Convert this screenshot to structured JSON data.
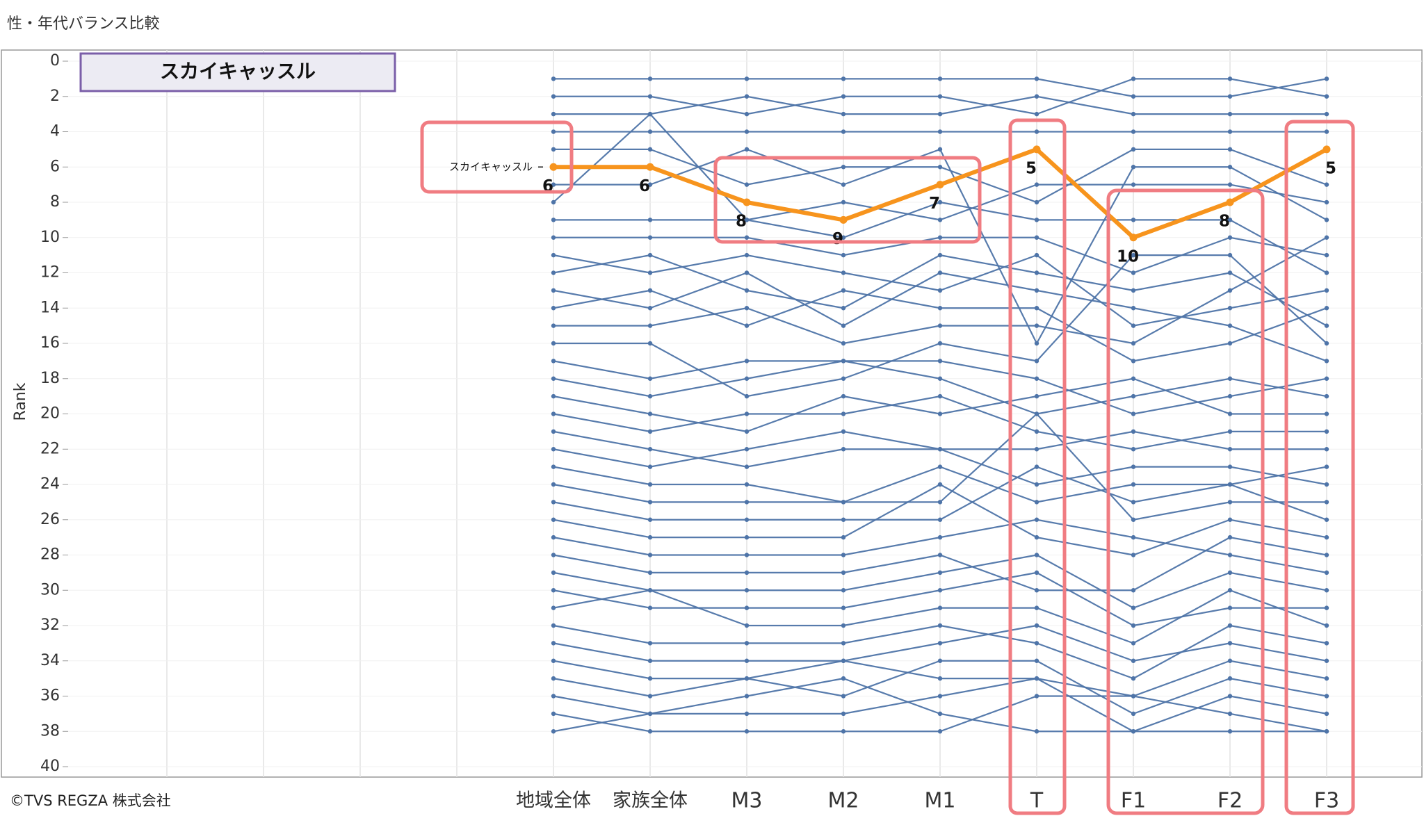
{
  "title": "性・年代バランス比較",
  "footer": "©TVS REGZA 株式会社",
  "chart_data": {
    "type": "line",
    "y_label": "Rank",
    "ylim": [
      0,
      40
    ],
    "y_reversed": true,
    "yticks": [
      0,
      2,
      4,
      6,
      8,
      10,
      12,
      14,
      16,
      18,
      20,
      22,
      24,
      26,
      28,
      30,
      32,
      34,
      36,
      38,
      40
    ],
    "grid": true,
    "categories": [
      "地域全体",
      "家族全体",
      "M3",
      "M2",
      "M1",
      "T",
      "F1",
      "F2",
      "F3"
    ],
    "series": [
      {
        "name": "スカイキャッスル",
        "color": "#f7941d",
        "highlight": true,
        "data_labels": true,
        "values": [
          6,
          6,
          8,
          9,
          7,
          5,
          10,
          8,
          5
        ]
      },
      {
        "color": "#4e74a8",
        "values": [
          1,
          1,
          1,
          1,
          1,
          1,
          2,
          2,
          1
        ]
      },
      {
        "color": "#4e74a8",
        "values": [
          2,
          2,
          3,
          2,
          2,
          3,
          1,
          1,
          2
        ]
      },
      {
        "color": "#4e74a8",
        "values": [
          3,
          3,
          2,
          3,
          3,
          2,
          3,
          3,
          3
        ]
      },
      {
        "color": "#4e74a8",
        "values": [
          4,
          4,
          4,
          4,
          4,
          4,
          4,
          4,
          4
        ]
      },
      {
        "color": "#4e74a8",
        "values": [
          5,
          5,
          7,
          6,
          6,
          8,
          5,
          5,
          7
        ]
      },
      {
        "color": "#4e74a8",
        "values": [
          7,
          7,
          5,
          7,
          5,
          16,
          6,
          6,
          9
        ]
      },
      {
        "color": "#4e74a8",
        "values": [
          8,
          3,
          9,
          8,
          9,
          7,
          7,
          7,
          8
        ]
      },
      {
        "color": "#4e74a8",
        "values": [
          9,
          9,
          9,
          10,
          8,
          9,
          9,
          9,
          12
        ]
      },
      {
        "color": "#4e74a8",
        "values": [
          10,
          10,
          10,
          11,
          10,
          10,
          12,
          10,
          11
        ]
      },
      {
        "color": "#4e74a8",
        "values": [
          11,
          12,
          11,
          12,
          13,
          11,
          15,
          14,
          13
        ]
      },
      {
        "color": "#4e74a8",
        "values": [
          12,
          11,
          13,
          14,
          11,
          12,
          13,
          12,
          15
        ]
      },
      {
        "color": "#4e74a8",
        "values": [
          13,
          14,
          12,
          15,
          12,
          13,
          14,
          15,
          17
        ]
      },
      {
        "color": "#4e74a8",
        "values": [
          14,
          13,
          15,
          13,
          14,
          14,
          17,
          16,
          14
        ]
      },
      {
        "color": "#4e74a8",
        "values": [
          15,
          15,
          14,
          16,
          15,
          15,
          16,
          13,
          10
        ]
      },
      {
        "color": "#4e74a8",
        "values": [
          16,
          16,
          19,
          18,
          16,
          17,
          11,
          11,
          16
        ]
      },
      {
        "color": "#4e74a8",
        "values": [
          17,
          18,
          17,
          17,
          18,
          20,
          19,
          18,
          19
        ]
      },
      {
        "color": "#4e74a8",
        "values": [
          18,
          19,
          18,
          17,
          17,
          18,
          20,
          19,
          18
        ]
      },
      {
        "color": "#4e74a8",
        "values": [
          19,
          20,
          21,
          19,
          20,
          19,
          18,
          20,
          20
        ]
      },
      {
        "color": "#4e74a8",
        "values": [
          20,
          21,
          20,
          20,
          19,
          21,
          22,
          21,
          21
        ]
      },
      {
        "color": "#4e74a8",
        "values": [
          21,
          22,
          23,
          22,
          22,
          22,
          21,
          22,
          22
        ]
      },
      {
        "color": "#4e74a8",
        "values": [
          22,
          23,
          22,
          21,
          22,
          24,
          23,
          23,
          24
        ]
      },
      {
        "color": "#4e74a8",
        "values": [
          23,
          24,
          24,
          25,
          23,
          25,
          24,
          24,
          23
        ]
      },
      {
        "color": "#4e74a8",
        "values": [
          24,
          25,
          25,
          25,
          25,
          20,
          26,
          25,
          25
        ]
      },
      {
        "color": "#4e74a8",
        "values": [
          25,
          26,
          26,
          26,
          26,
          23,
          25,
          24,
          26
        ]
      },
      {
        "color": "#4e74a8",
        "values": [
          26,
          27,
          27,
          27,
          24,
          27,
          28,
          26,
          27
        ]
      },
      {
        "color": "#4e74a8",
        "values": [
          27,
          28,
          28,
          28,
          27,
          26,
          27,
          28,
          29
        ]
      },
      {
        "color": "#4e74a8",
        "values": [
          28,
          29,
          29,
          29,
          28,
          30,
          30,
          27,
          28
        ]
      },
      {
        "color": "#4e74a8",
        "values": [
          29,
          30,
          30,
          30,
          29,
          28,
          31,
          29,
          30
        ]
      },
      {
        "color": "#4e74a8",
        "values": [
          30,
          31,
          31,
          31,
          30,
          29,
          32,
          31,
          31
        ]
      },
      {
        "color": "#4e74a8",
        "values": [
          31,
          30,
          32,
          32,
          31,
          31,
          33,
          30,
          32
        ]
      },
      {
        "color": "#4e74a8",
        "values": [
          32,
          33,
          33,
          33,
          32,
          33,
          35,
          32,
          33
        ]
      },
      {
        "color": "#4e74a8",
        "values": [
          33,
          34,
          34,
          34,
          33,
          32,
          34,
          33,
          34
        ]
      },
      {
        "color": "#4e74a8",
        "values": [
          34,
          35,
          35,
          34,
          35,
          35,
          36,
          34,
          35
        ]
      },
      {
        "color": "#4e74a8",
        "values": [
          35,
          36,
          35,
          36,
          34,
          34,
          37,
          35,
          36
        ]
      },
      {
        "color": "#4e74a8",
        "values": [
          36,
          37,
          37,
          37,
          36,
          35,
          38,
          36,
          37
        ]
      },
      {
        "color": "#4e74a8",
        "values": [
          37,
          38,
          38,
          38,
          38,
          36,
          36,
          37,
          38
        ]
      },
      {
        "color": "#4e74a8",
        "values": [
          38,
          37,
          36,
          35,
          37,
          38,
          38,
          38,
          38
        ]
      }
    ]
  }
}
